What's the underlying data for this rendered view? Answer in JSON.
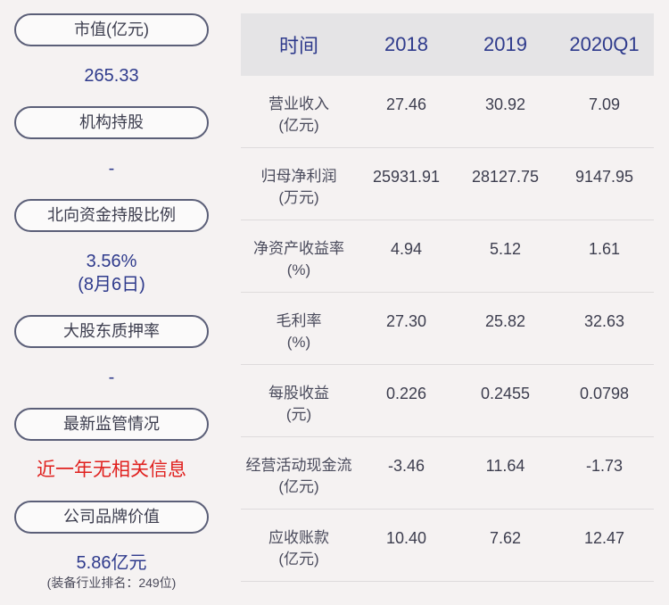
{
  "left": {
    "market_cap": {
      "label": "市值(亿元)",
      "value": "265.33"
    },
    "institution": {
      "label": "机构持股",
      "value": "-"
    },
    "northbound": {
      "label": "北向资金持股比例",
      "value": "3.56%",
      "date": "(8月6日)"
    },
    "pledge": {
      "label": "大股东质押率",
      "value": "-"
    },
    "regulation": {
      "label": "最新监管情况",
      "value": "近一年无相关信息"
    },
    "brand": {
      "label": "公司品牌价值",
      "value": "5.86亿元",
      "note": "(装备行业排名：249位)"
    }
  },
  "table": {
    "headers": [
      "时间",
      "2018",
      "2019",
      "2020Q1"
    ],
    "rows": [
      {
        "label": [
          "营业收入",
          "(亿元)"
        ],
        "values": [
          "27.46",
          "30.92",
          "7.09"
        ]
      },
      {
        "label": [
          "归母净利润",
          "(万元)"
        ],
        "values": [
          "25931.91",
          "28127.75",
          "9147.95"
        ]
      },
      {
        "label": [
          "净资产收益率",
          "(%)"
        ],
        "values": [
          "4.94",
          "5.12",
          "1.61"
        ]
      },
      {
        "label": [
          "毛利率",
          "(%)"
        ],
        "values": [
          "27.30",
          "25.82",
          "32.63"
        ]
      },
      {
        "label": [
          "每股收益",
          "(元)"
        ],
        "values": [
          "0.226",
          "0.2455",
          "0.0798"
        ]
      },
      {
        "label": [
          "经营活动现金流",
          "(亿元)"
        ],
        "values": [
          "-3.46",
          "11.64",
          "-1.73"
        ]
      },
      {
        "label": [
          "应收账款",
          "(亿元)"
        ],
        "values": [
          "10.40",
          "7.62",
          "12.47"
        ]
      }
    ]
  },
  "colors": {
    "accent": "#2e3a8c",
    "alert": "#e0201e",
    "header_bg": "#e5e4e6",
    "page_bg": "#f5f2f2"
  }
}
